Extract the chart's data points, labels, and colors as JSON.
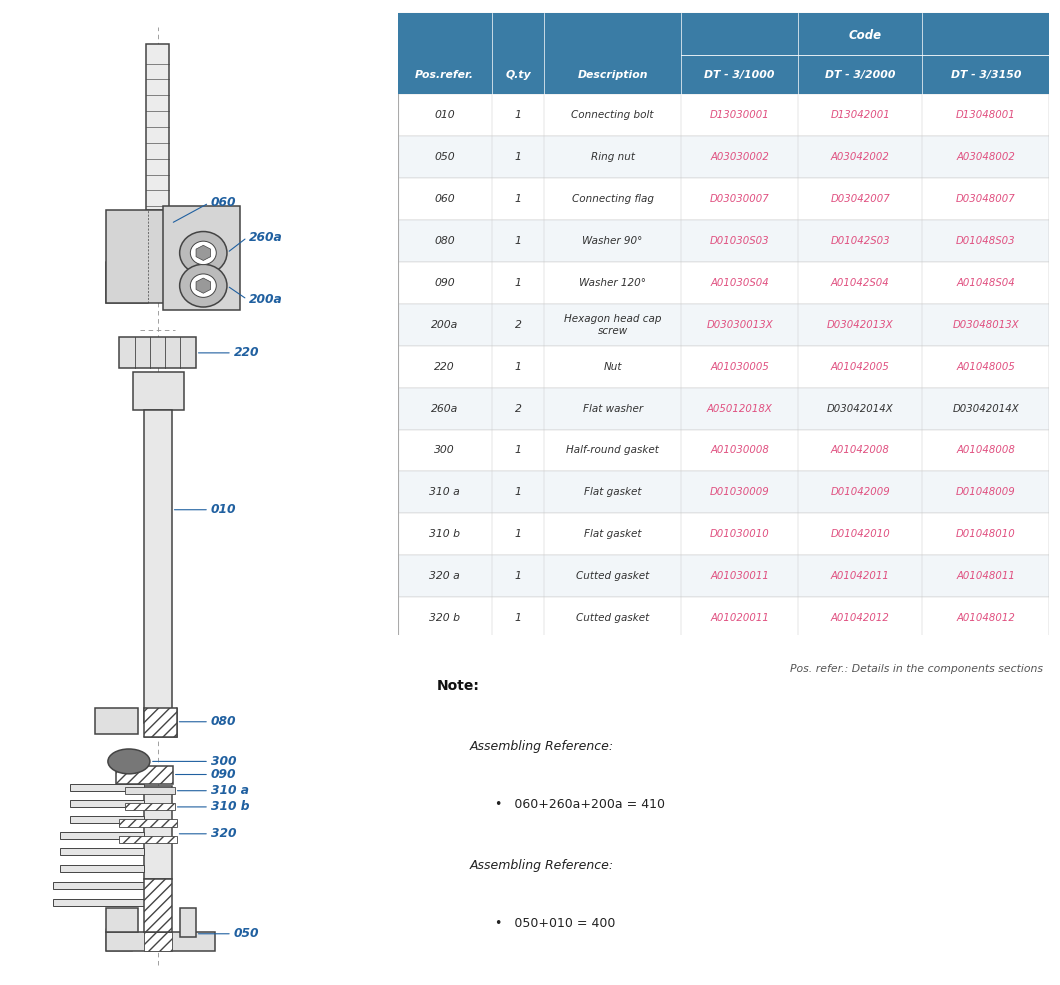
{
  "table_header_bg": "#3a7ca5",
  "table_header_color": "#ffffff",
  "table_odd_bg": "#ffffff",
  "table_even_bg": "#f2f6f9",
  "code_color_pink": "#e05080",
  "code_color_dark": "#333333",
  "label_color": "#2060a0",
  "line_color": "#444444",
  "bg_color": "#ffffff",
  "headers": [
    "Pos.refer.",
    "Q.ty",
    "Description",
    "DT - 3/1000",
    "DT - 3/2000",
    "DT - 3/3150"
  ],
  "code_header": "Code",
  "rows": [
    [
      "010",
      "1",
      "Connecting bolt",
      "D13030001",
      "D13042001",
      "D13048001"
    ],
    [
      "050",
      "1",
      "Ring nut",
      "A03030002",
      "A03042002",
      "A03048002"
    ],
    [
      "060",
      "1",
      "Connecting flag",
      "D03030007",
      "D03042007",
      "D03048007"
    ],
    [
      "080",
      "1",
      "Washer 90°",
      "D01030S03",
      "D01042S03",
      "D01048S03"
    ],
    [
      "090",
      "1",
      "Washer 120°",
      "A01030S04",
      "A01042S04",
      "A01048S04"
    ],
    [
      "200a",
      "2",
      "Hexagon head cap\nscrew",
      "D03030013X",
      "D03042013X",
      "D03048013X"
    ],
    [
      "220",
      "1",
      "Nut",
      "A01030005",
      "A01042005",
      "A01048005"
    ],
    [
      "260a",
      "2",
      "Flat washer",
      "A05012018X",
      "D03042014X",
      "D03042014X"
    ],
    [
      "300",
      "1",
      "Half-round gasket",
      "A01030008",
      "A01042008",
      "A01048008"
    ],
    [
      "310 a",
      "1",
      "Flat gasket",
      "D01030009",
      "D01042009",
      "D01048009"
    ],
    [
      "310 b",
      "1",
      "Flat gasket",
      "D01030010",
      "D01042010",
      "D01048010"
    ],
    [
      "320 a",
      "1",
      "Cutted gasket",
      "A01030011",
      "A01042011",
      "A01048011"
    ],
    [
      "320 b",
      "1",
      "Cutted gasket",
      "A01020011",
      "A01042012",
      "A01048012"
    ]
  ],
  "row_colors_col3": [
    "pink",
    "pink",
    "pink",
    "pink",
    "pink",
    "pink",
    "pink",
    "pink",
    "pink",
    "pink",
    "pink",
    "pink",
    "pink"
  ],
  "row_colors_col4": [
    "pink",
    "pink",
    "pink",
    "pink",
    "pink",
    "pink",
    "pink",
    "dark",
    "pink",
    "pink",
    "pink",
    "pink",
    "pink"
  ],
  "row_colors_col5": [
    "pink",
    "pink",
    "pink",
    "pink",
    "pink",
    "pink",
    "pink",
    "dark",
    "pink",
    "pink",
    "pink",
    "pink",
    "pink"
  ],
  "footer_note": "Pos. refer.: Details in the components sections",
  "note_title": "Note:",
  "assembling1_title": "Assembling Reference:",
  "assembling1_formula": "060+260a+200a = 410",
  "assembling2_title": "Assembling Reference:",
  "assembling2_formula": "050+010 = 400"
}
